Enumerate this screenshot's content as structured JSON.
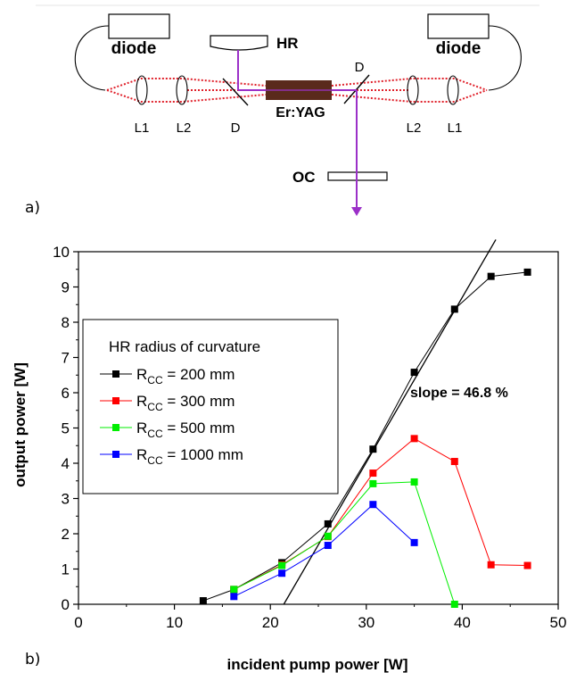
{
  "panel_a": {
    "panel_label": "a)",
    "labels": {
      "diode_left": "diode",
      "diode_right": "diode",
      "hr": "HR",
      "crystal": "Er:YAG",
      "oc": "OC",
      "l1_left": "L1",
      "l2_left": "L2",
      "d_left": "D",
      "d_right": "D",
      "l2_right": "L2",
      "l1_right": "L1"
    },
    "colors": {
      "pump_beam": "#e0202a",
      "laser_beam": "#9b30c8",
      "crystal": "#5a2a1c"
    }
  },
  "panel_b": {
    "panel_label": "b)",
    "annotation": "slope = 46.8 %",
    "legend_title": "HR radius of curvature",
    "legend_prefix": "R",
    "legend_subscript": "CC",
    "legend_values": [
      "= 200 mm",
      "= 300 mm",
      "= 500 mm",
      "= 1000 mm"
    ]
  },
  "chart_data": {
    "type": "line",
    "xlabel": "incident pump power [W]",
    "ylabel": "output power [W]",
    "xlim": [
      0,
      50
    ],
    "ylim": [
      0,
      10
    ],
    "xticks": [
      0,
      10,
      20,
      30,
      40,
      50
    ],
    "yticks": [
      0,
      1,
      2,
      3,
      4,
      5,
      6,
      7,
      8,
      9,
      10
    ],
    "legend_placement": "upper-left",
    "series": [
      {
        "name": "200 mm",
        "color": "#000000",
        "x": [
          13.0,
          16.2,
          21.2,
          26.0,
          30.7,
          35.0,
          39.2,
          43.0,
          46.8
        ],
        "y": [
          0.1,
          0.42,
          1.18,
          2.28,
          4.4,
          6.58,
          8.37,
          9.3,
          9.42
        ]
      },
      {
        "name": "300 mm",
        "color": "#ff0000",
        "x": [
          16.2,
          21.2,
          26.0,
          30.7,
          35.0,
          39.2,
          43.0,
          46.8
        ],
        "y": [
          0.42,
          1.12,
          1.92,
          3.72,
          4.7,
          4.05,
          1.12,
          1.1
        ]
      },
      {
        "name": "500 mm",
        "color": "#00ee00",
        "x": [
          16.2,
          21.2,
          26.0,
          30.7,
          35.0,
          39.2
        ],
        "y": [
          0.42,
          1.1,
          1.93,
          3.42,
          3.47,
          0.0
        ]
      },
      {
        "name": "1000 mm",
        "color": "#0000ff",
        "x": [
          16.2,
          21.2,
          26.0,
          30.7,
          35.0
        ],
        "y": [
          0.22,
          0.88,
          1.67,
          2.83,
          1.75
        ]
      }
    ],
    "fit_line": {
      "slope": 0.468,
      "x_intercept": 21.4,
      "x_range": [
        21.4,
        43.5
      ]
    }
  }
}
